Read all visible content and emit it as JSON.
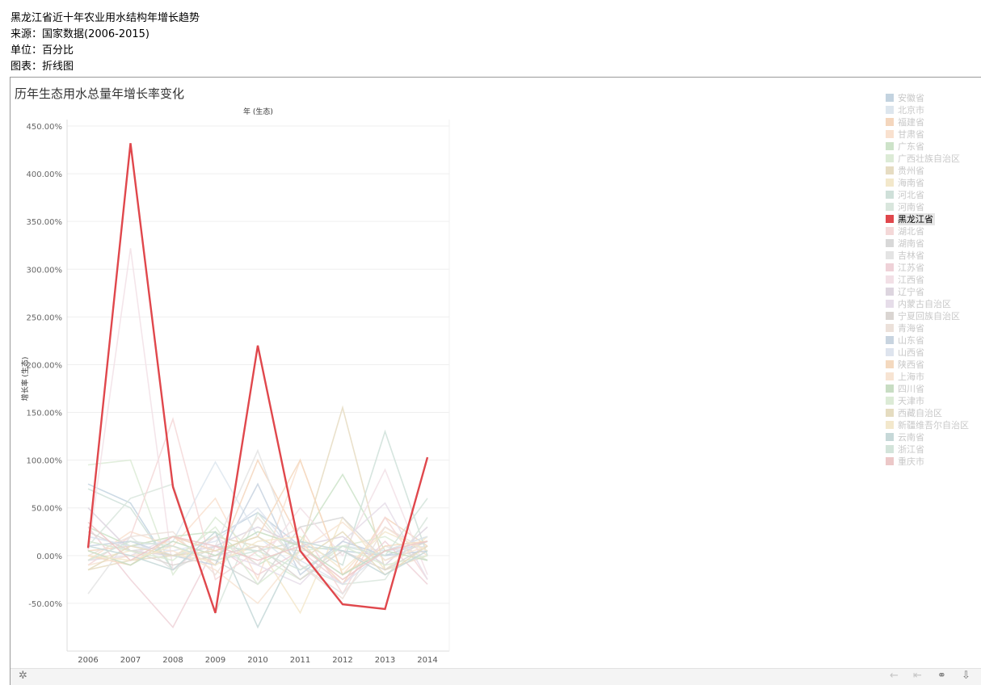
{
  "header": {
    "title": "黑龙江省近十年农业用水结构年增长趋势",
    "source": "来源：国家数据(2006-2015)",
    "unit": "单位：百分比",
    "chart_kind": "图表：折线图"
  },
  "chart_data": {
    "type": "line",
    "title": "历年生态用水总量年增长率变化",
    "top_label": "年 (生态)",
    "xlabel": "",
    "ylabel": "增长率 (生态)",
    "x": [
      "2006",
      "2007",
      "2008",
      "2009",
      "2010",
      "2011",
      "2012",
      "2013",
      "2014"
    ],
    "ylim": [
      -100,
      450
    ],
    "yticks": [
      -50,
      0,
      50,
      100,
      150,
      200,
      250,
      300,
      350,
      400,
      450
    ],
    "ytick_labels": [
      "-50.00%",
      "0.00%",
      "50.00%",
      "100.00%",
      "150.00%",
      "200.00%",
      "250.00%",
      "300.00%",
      "350.00%",
      "400.00%",
      "450.00%"
    ],
    "highlight": "黑龙江省",
    "series": [
      {
        "name": "安徽省",
        "color": "#c3d3e0",
        "values": [
          75,
          55,
          -15,
          20,
          45,
          10,
          5,
          0,
          15
        ]
      },
      {
        "name": "北京市",
        "color": "#dde6ee",
        "values": [
          20,
          10,
          15,
          98,
          20,
          -15,
          10,
          5,
          10
        ]
      },
      {
        "name": "福建省",
        "color": "#f4d6bd",
        "values": [
          5,
          10,
          20,
          -10,
          100,
          15,
          -30,
          40,
          10
        ]
      },
      {
        "name": "甘肃省",
        "color": "#f9e1cf",
        "values": [
          -5,
          25,
          10,
          60,
          -25,
          100,
          -20,
          30,
          0
        ]
      },
      {
        "name": "广东省",
        "color": "#cde3c9",
        "values": [
          30,
          10,
          20,
          25,
          -10,
          15,
          85,
          5,
          20
        ]
      },
      {
        "name": "广西壮族自治区",
        "color": "#dcebd6",
        "values": [
          95,
          100,
          -20,
          40,
          0,
          -25,
          10,
          20,
          -5
        ]
      },
      {
        "name": "贵州省",
        "color": "#e6dcc2",
        "values": [
          -15,
          -5,
          0,
          20,
          10,
          5,
          155,
          -15,
          0
        ]
      },
      {
        "name": "海南省",
        "color": "#f3e8cb",
        "values": [
          -5,
          5,
          0,
          -5,
          10,
          -60,
          40,
          -15,
          20
        ]
      },
      {
        "name": "河北省",
        "color": "#cfe0d9",
        "values": [
          70,
          50,
          -15,
          10,
          5,
          15,
          -10,
          130,
          0
        ]
      },
      {
        "name": "河南省",
        "color": "#d9e6dd",
        "values": [
          10,
          60,
          75,
          -60,
          45,
          -10,
          -30,
          -25,
          40
        ]
      },
      {
        "name": "黑龙江省",
        "color": "#e0474c",
        "values": [
          8,
          432,
          72,
          -60,
          220,
          5,
          -51,
          -56,
          103
        ]
      },
      {
        "name": "湖北省",
        "color": "#f4d8d8",
        "values": [
          -10,
          20,
          143,
          -25,
          5,
          30,
          -40,
          40,
          -25
        ]
      },
      {
        "name": "湖南省",
        "color": "#d8d8d8",
        "values": [
          15,
          5,
          10,
          -5,
          -30,
          30,
          40,
          -5,
          15
        ]
      },
      {
        "name": "吉林省",
        "color": "#e4e4e4",
        "values": [
          -40,
          20,
          -15,
          10,
          110,
          -10,
          -40,
          10,
          -5
        ]
      },
      {
        "name": "江苏省",
        "color": "#efd2d8",
        "values": [
          30,
          -25,
          -75,
          10,
          -20,
          5,
          -30,
          15,
          -30
        ]
      },
      {
        "name": "江西省",
        "color": "#f2e0e6",
        "values": [
          5,
          322,
          -15,
          20,
          -10,
          50,
          0,
          90,
          -20
        ]
      },
      {
        "name": "辽宁省",
        "color": "#ddd5df",
        "values": [
          50,
          5,
          0,
          10,
          30,
          10,
          20,
          -10,
          30
        ]
      },
      {
        "name": "内蒙古自治区",
        "color": "#e6dde9",
        "values": [
          -5,
          0,
          20,
          5,
          -10,
          -30,
          15,
          55,
          -25
        ]
      },
      {
        "name": "宁夏回族自治区",
        "color": "#dad5d2",
        "values": [
          25,
          5,
          -10,
          0,
          10,
          -25,
          5,
          -15,
          10
        ]
      },
      {
        "name": "青海省",
        "color": "#ece1da",
        "values": [
          0,
          20,
          25,
          -20,
          40,
          -10,
          -45,
          30,
          5
        ]
      },
      {
        "name": "山东省",
        "color": "#c8d4e0",
        "values": [
          10,
          15,
          0,
          -10,
          75,
          -20,
          15,
          0,
          5
        ]
      },
      {
        "name": "山西省",
        "color": "#dee4ee",
        "values": [
          20,
          10,
          5,
          15,
          50,
          -5,
          -30,
          5,
          20
        ]
      },
      {
        "name": "陕西省",
        "color": "#f4d9bf",
        "values": [
          0,
          -10,
          20,
          5,
          20,
          100,
          -20,
          10,
          15
        ]
      },
      {
        "name": "上海市",
        "color": "#f7e4d3",
        "values": [
          -10,
          0,
          5,
          -15,
          -50,
          5,
          35,
          -5,
          10
        ]
      },
      {
        "name": "四川省",
        "color": "#c8ddc3",
        "values": [
          5,
          -10,
          15,
          0,
          25,
          10,
          -20,
          5,
          -5
        ]
      },
      {
        "name": "天津市",
        "color": "#dcebd6",
        "values": [
          15,
          5,
          -5,
          30,
          -30,
          5,
          10,
          -10,
          0
        ]
      },
      {
        "name": "西藏自治区",
        "color": "#e5dcc0",
        "values": [
          -15,
          10,
          0,
          5,
          20,
          -5,
          25,
          -20,
          10
        ]
      },
      {
        "name": "新疆维吾尔自治区",
        "color": "#f3e8cc",
        "values": [
          0,
          -5,
          10,
          -10,
          15,
          20,
          -15,
          25,
          5
        ]
      },
      {
        "name": "云南省",
        "color": "#c6d8d8",
        "values": [
          10,
          0,
          -15,
          25,
          -75,
          15,
          5,
          -20,
          5
        ]
      },
      {
        "name": "浙江省",
        "color": "#d3e4da",
        "values": [
          -5,
          15,
          10,
          -5,
          5,
          -15,
          10,
          0,
          60
        ]
      },
      {
        "name": "重庆市",
        "color": "#ecc8c8",
        "values": [
          35,
          -5,
          20,
          10,
          -5,
          10,
          -25,
          5,
          15
        ]
      }
    ]
  },
  "toolbar": {
    "settings_icon": "gear-icon",
    "undo_icon": "undo-icon",
    "reset_icon": "reset-icon",
    "share_icon": "share-icon",
    "download_icon": "download-icon"
  }
}
